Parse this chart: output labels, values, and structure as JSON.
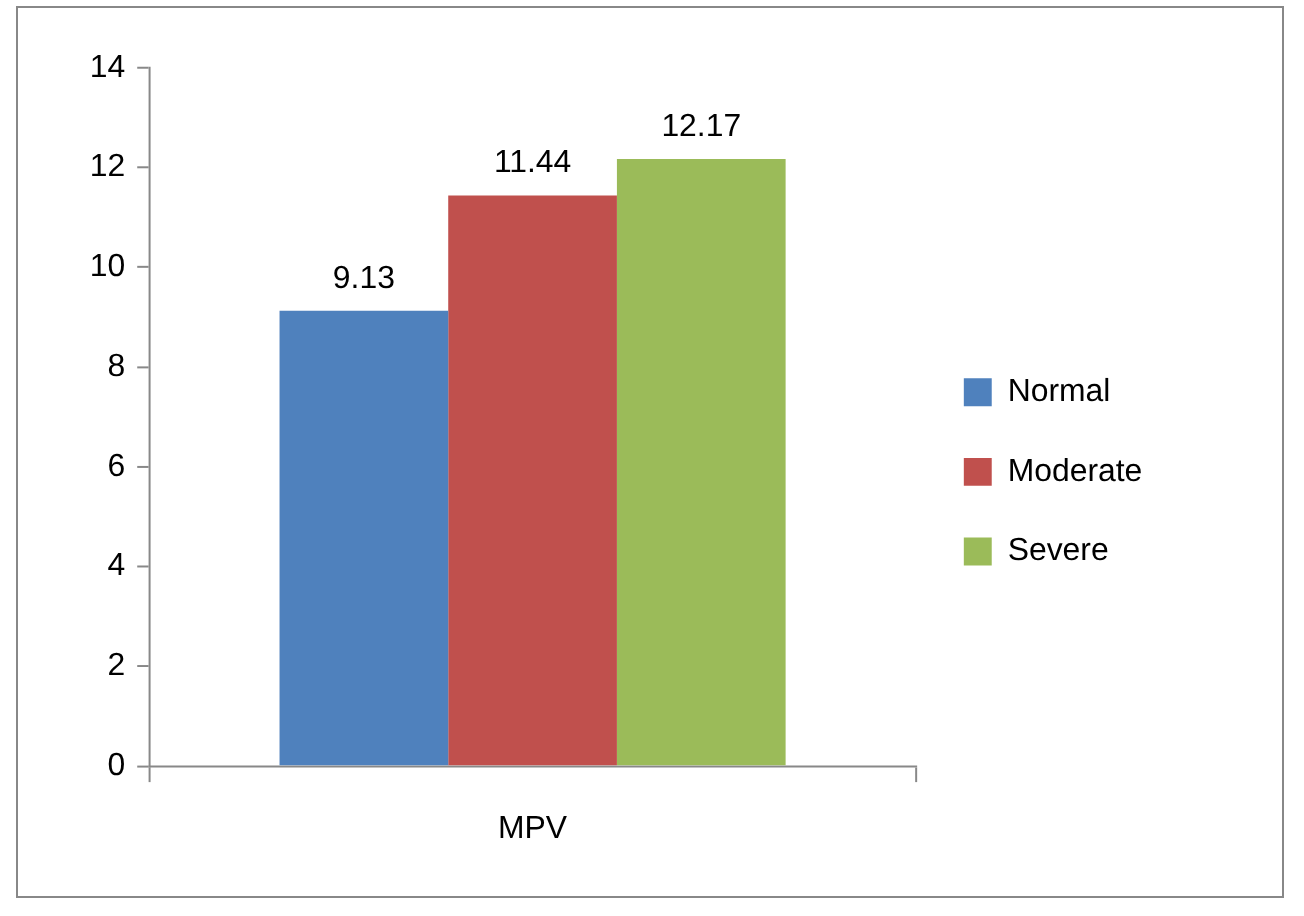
{
  "chart_data": {
    "type": "bar",
    "categories": [
      "MPV"
    ],
    "series": [
      {
        "name": "Normal",
        "color": "#4f81bd",
        "values": [
          9.13
        ]
      },
      {
        "name": "Moderate",
        "color": "#c0504d",
        "values": [
          11.44
        ]
      },
      {
        "name": "Severe",
        "color": "#9bbb59",
        "values": [
          12.17
        ]
      }
    ],
    "ylim": [
      0,
      14
    ],
    "yticks": [
      0,
      2,
      4,
      6,
      8,
      10,
      12,
      14
    ],
    "grid": false,
    "legend": "right",
    "data_labels": true
  }
}
